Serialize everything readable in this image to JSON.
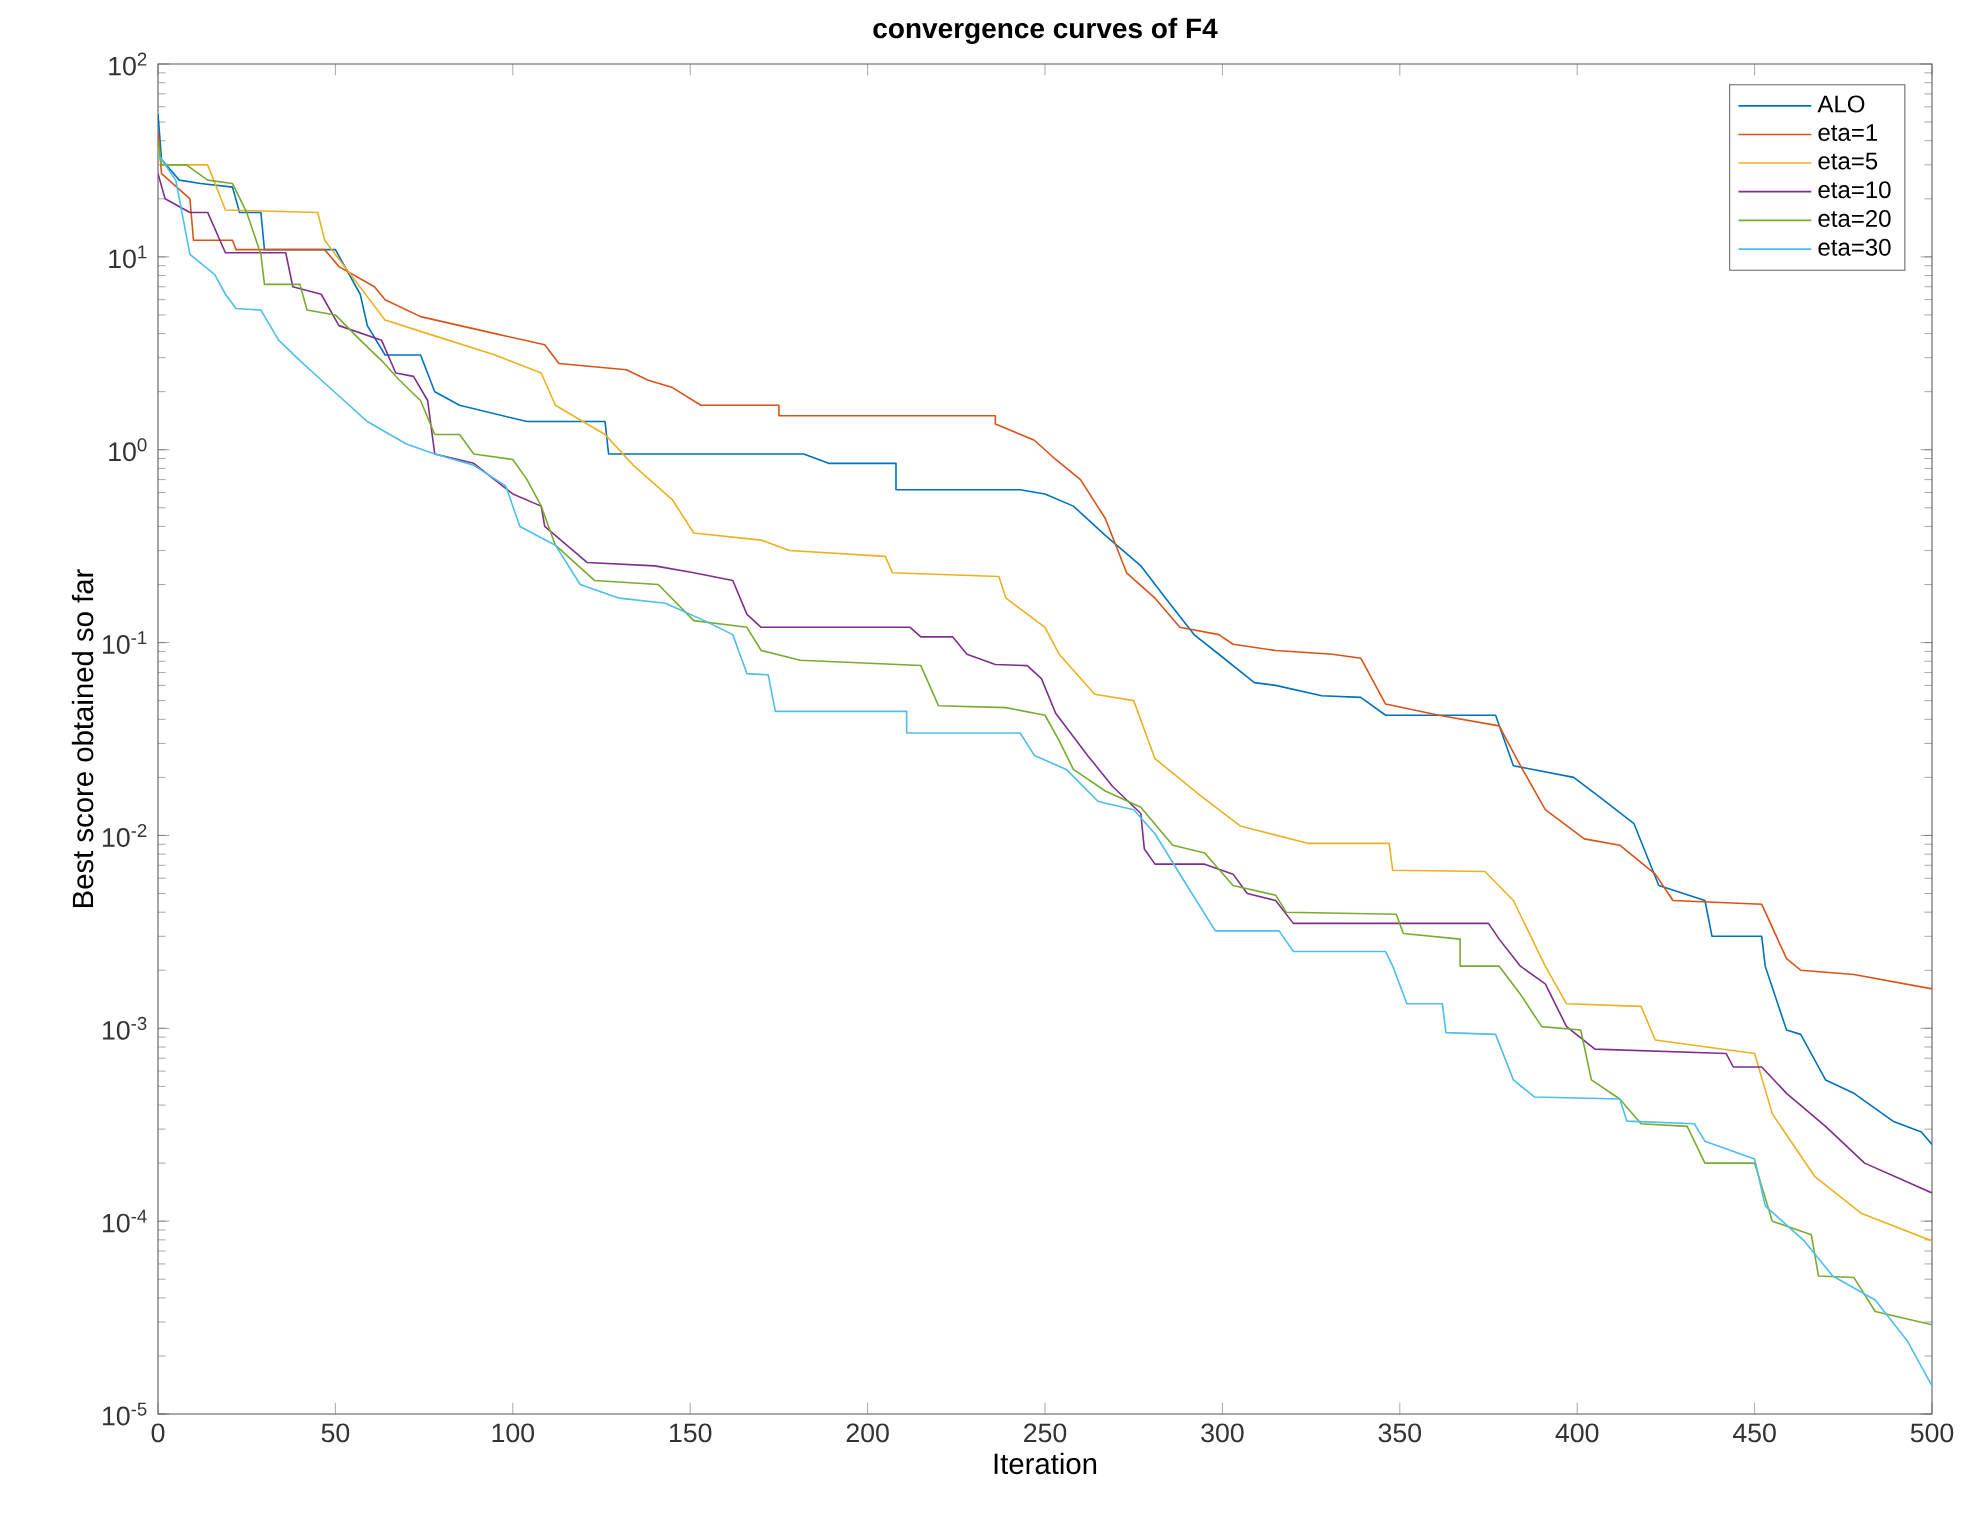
{
  "chart_data": {
    "type": "line",
    "title": "convergence curves of F4",
    "xlabel": "Iteration",
    "ylabel": "Best score obtained so far",
    "log": true,
    "legend": "top right",
    "xlim": [
      0,
      500
    ],
    "ylim": [
      1e-05,
      100
    ],
    "xticks": [
      0,
      50,
      100,
      150,
      200,
      250,
      300,
      350,
      400,
      450,
      500
    ],
    "yticks": [
      {
        "value": 1e-05,
        "label": "10$^{-5}$"
      },
      {
        "value": 0.0001,
        "label": "10$^{-4}$"
      },
      {
        "value": 0.001,
        "label": "10$^{-3}$"
      },
      {
        "value": 0.01,
        "label": "10$^{-2}$"
      },
      {
        "value": 0.1,
        "label": "10$^{-1}$"
      },
      {
        "value": 1,
        "label": "10$^{0}$"
      },
      {
        "value": 10,
        "label": "10$^{1}$"
      },
      {
        "value": 100,
        "label": "10$^{2}$"
      }
    ],
    "series": [
      {
        "name": "ALO",
        "color": "#0072bd",
        "x": [
          0,
          1,
          6,
          12,
          21,
          23,
          29,
          30,
          50,
          57,
          59,
          64,
          74,
          78,
          85,
          104,
          126,
          127,
          170,
          182,
          189,
          208,
          208,
          243,
          250,
          258,
          267,
          277,
          284,
          292,
          299,
          309,
          315,
          328,
          339,
          346,
          377,
          382,
          399,
          406,
          416,
          423,
          436,
          438,
          452,
          453,
          459,
          463,
          470,
          478,
          489,
          497,
          500
        ],
        "values": [
          55,
          32,
          25,
          24,
          23,
          17,
          17,
          10.9,
          10.9,
          6.4,
          4.4,
          3.1,
          3.1,
          2.0,
          1.7,
          1.4,
          1.4,
          0.95,
          0.95,
          0.95,
          0.85,
          0.85,
          0.62,
          0.62,
          0.59,
          0.51,
          0.36,
          0.25,
          0.17,
          0.11,
          0.087,
          0.062,
          0.06,
          0.053,
          0.052,
          0.042,
          0.042,
          0.023,
          0.02,
          0.016,
          0.0115,
          0.0055,
          0.0046,
          0.003,
          0.003,
          0.0021,
          0.00098,
          0.00093,
          0.00054,
          0.00046,
          0.00033,
          0.00029,
          0.00025
        ]
      },
      {
        "name": "eta=1",
        "color": "#d95319",
        "x": [
          0,
          1,
          9,
          10,
          21,
          22,
          47,
          51,
          61,
          64,
          74,
          95,
          109,
          113,
          132,
          138,
          145,
          153,
          175,
          175,
          236,
          236,
          247,
          253,
          260,
          267,
          273,
          281,
          288,
          299,
          303,
          315,
          331,
          339,
          346,
          361,
          378,
          384,
          391,
          402,
          412,
          422,
          427,
          452,
          459,
          463,
          478,
          500
        ],
        "values": [
          45,
          27,
          20,
          12.2,
          12.2,
          10.9,
          10.9,
          8.9,
          7.0,
          6.0,
          4.9,
          4.0,
          3.5,
          2.8,
          2.6,
          2.3,
          2.1,
          1.7,
          1.7,
          1.5,
          1.5,
          1.36,
          1.12,
          0.89,
          0.7,
          0.44,
          0.23,
          0.17,
          0.12,
          0.11,
          0.098,
          0.091,
          0.087,
          0.083,
          0.048,
          0.042,
          0.037,
          0.023,
          0.0136,
          0.0096,
          0.0089,
          0.0063,
          0.0046,
          0.0044,
          0.0023,
          0.002,
          0.0019,
          0.0016
        ]
      },
      {
        "name": "eta=5",
        "color": "#edb120",
        "x": [
          0,
          1,
          14,
          19,
          45,
          47,
          50,
          64,
          76,
          95,
          108,
          112,
          126,
          134,
          145,
          151,
          170,
          178,
          205,
          207,
          237,
          239,
          250,
          254,
          264,
          275,
          281,
          294,
          305,
          324,
          347,
          348,
          374,
          382,
          391,
          397,
          418,
          422,
          450,
          455,
          467,
          480,
          500
        ],
        "values": [
          37,
          30,
          30,
          17.5,
          17,
          12.2,
          10.3,
          4.7,
          4.0,
          3.1,
          2.5,
          1.7,
          1.2,
          0.83,
          0.55,
          0.37,
          0.34,
          0.3,
          0.28,
          0.23,
          0.22,
          0.17,
          0.12,
          0.087,
          0.054,
          0.05,
          0.025,
          0.016,
          0.0112,
          0.0091,
          0.0091,
          0.0066,
          0.0065,
          0.0046,
          0.0021,
          0.00134,
          0.0013,
          0.00087,
          0.00074,
          0.00036,
          0.00017,
          0.00011,
          7.9e-05
        ]
      },
      {
        "name": "eta=10",
        "color": "#7e2f8e",
        "x": [
          0,
          2,
          9,
          14,
          19,
          36,
          38,
          46,
          51,
          63,
          67,
          72,
          76,
          78,
          89,
          100,
          108,
          109,
          121,
          140,
          151,
          162,
          166,
          170,
          212,
          215,
          224,
          228,
          236,
          245,
          249,
          253,
          262,
          269,
          277,
          278,
          281,
          295,
          303,
          307,
          315,
          320,
          375,
          378,
          384,
          391,
          397,
          405,
          442,
          444,
          452,
          459,
          470,
          481,
          500
        ],
        "values": [
          27,
          20,
          17,
          17,
          10.5,
          10.5,
          7.0,
          6.4,
          4.4,
          3.7,
          2.5,
          2.4,
          1.8,
          0.95,
          0.85,
          0.59,
          0.51,
          0.4,
          0.26,
          0.25,
          0.23,
          0.21,
          0.14,
          0.12,
          0.12,
          0.107,
          0.107,
          0.087,
          0.077,
          0.076,
          0.065,
          0.043,
          0.026,
          0.018,
          0.013,
          0.0085,
          0.0071,
          0.0071,
          0.0063,
          0.005,
          0.0046,
          0.0035,
          0.0035,
          0.0029,
          0.0021,
          0.0017,
          0.00102,
          0.00078,
          0.00074,
          0.00063,
          0.00063,
          0.00046,
          0.00031,
          0.0002,
          0.00014
        ]
      },
      {
        "name": "eta=20",
        "color": "#77ac30",
        "x": [
          0,
          1,
          8,
          14,
          21,
          25,
          29,
          30,
          40,
          42,
          50,
          57,
          63,
          68,
          74,
          78,
          85,
          89,
          100,
          104,
          108,
          112,
          123,
          141,
          151,
          166,
          170,
          181,
          215,
          220,
          239,
          250,
          254,
          258,
          267,
          277,
          286,
          295,
          303,
          315,
          318,
          349,
          351,
          367,
          367,
          378,
          384,
          390,
          401,
          404,
          412,
          418,
          431,
          436,
          450,
          455,
          466,
          468,
          478,
          484,
          500
        ],
        "values": [
          40,
          30,
          30,
          25,
          24,
          17,
          10.3,
          7.2,
          7.2,
          5.3,
          5.0,
          3.7,
          2.9,
          2.3,
          1.8,
          1.2,
          1.2,
          0.95,
          0.89,
          0.7,
          0.51,
          0.32,
          0.21,
          0.2,
          0.13,
          0.12,
          0.091,
          0.081,
          0.076,
          0.047,
          0.046,
          0.042,
          0.031,
          0.022,
          0.017,
          0.014,
          0.0089,
          0.0081,
          0.0055,
          0.0049,
          0.004,
          0.0039,
          0.0031,
          0.0029,
          0.0021,
          0.0021,
          0.0015,
          0.00102,
          0.00098,
          0.00054,
          0.00043,
          0.00032,
          0.00031,
          0.0002,
          0.0002,
          0.0001,
          8.5e-05,
          5.2e-05,
          5.1e-05,
          3.4e-05,
          2.9e-05
        ]
      },
      {
        "name": "eta=30",
        "color": "#4dbeee",
        "x": [
          0,
          5,
          9,
          16,
          19,
          22,
          29,
          34,
          40,
          46,
          51,
          59,
          70,
          78,
          89,
          98,
          102,
          112,
          119,
          130,
          143,
          154,
          162,
          166,
          172,
          174,
          211,
          211,
          243,
          247,
          256,
          265,
          275,
          281,
          290,
          298,
          316,
          320,
          346,
          348,
          352,
          362,
          363,
          377,
          382,
          388,
          412,
          414,
          433,
          436,
          450,
          453,
          464,
          472,
          484,
          493,
          500
        ],
        "values": [
          34,
          25,
          10.3,
          8.1,
          6.4,
          5.4,
          5.3,
          3.7,
          2.9,
          2.3,
          1.9,
          1.4,
          1.07,
          0.95,
          0.83,
          0.65,
          0.4,
          0.32,
          0.2,
          0.17,
          0.16,
          0.13,
          0.11,
          0.069,
          0.068,
          0.044,
          0.044,
          0.034,
          0.034,
          0.026,
          0.022,
          0.015,
          0.0136,
          0.0102,
          0.0055,
          0.0032,
          0.0032,
          0.0025,
          0.0025,
          0.0021,
          0.00134,
          0.00134,
          0.00095,
          0.00093,
          0.00054,
          0.00044,
          0.00043,
          0.00033,
          0.00032,
          0.00026,
          0.00021,
          0.00012,
          7.9e-05,
          5.2e-05,
          3.9e-05,
          2.4e-05,
          1.4e-05
        ]
      }
    ]
  }
}
